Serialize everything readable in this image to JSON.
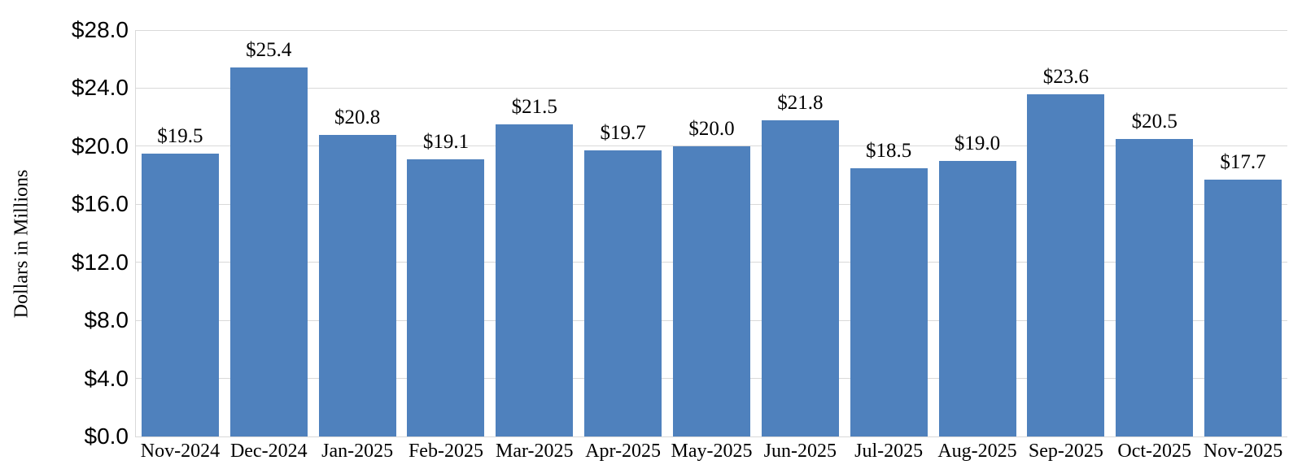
{
  "chart_data": {
    "type": "bar",
    "categories": [
      "Nov-2024",
      "Dec-2024",
      "Jan-2025",
      "Feb-2025",
      "Mar-2025",
      "Apr-2025",
      "May-2025",
      "Jun-2025",
      "Jul-2025",
      "Aug-2025",
      "Sep-2025",
      "Oct-2025",
      "Nov-2025"
    ],
    "values": [
      19.5,
      25.4,
      20.8,
      19.1,
      21.5,
      19.7,
      20.0,
      21.8,
      18.5,
      19.0,
      23.6,
      20.5,
      17.7
    ],
    "value_labels": [
      "$19.5",
      "$25.4",
      "$20.8",
      "$19.1",
      "$21.5",
      "$19.7",
      "$20.0",
      "$21.8",
      "$18.5",
      "$19.0",
      "$23.6",
      "$20.5",
      "$17.7"
    ],
    "ylabel": "Dollars in Millions",
    "xlabel": "",
    "ylim": [
      0,
      28
    ],
    "ytick_values": [
      0,
      4,
      8,
      12,
      16,
      20,
      24,
      28
    ],
    "ytick_labels": [
      "$0.0",
      "$4.0",
      "$8.0",
      "$12.0",
      "$16.0",
      "$20.0",
      "$24.0",
      "$28.0"
    ],
    "grid": true,
    "legend": "none",
    "bar_color": "#4F81BD",
    "gridline_color": "#D9D9D9",
    "axis_line_color": "#D9D9D9",
    "text_color": "#000000"
  }
}
